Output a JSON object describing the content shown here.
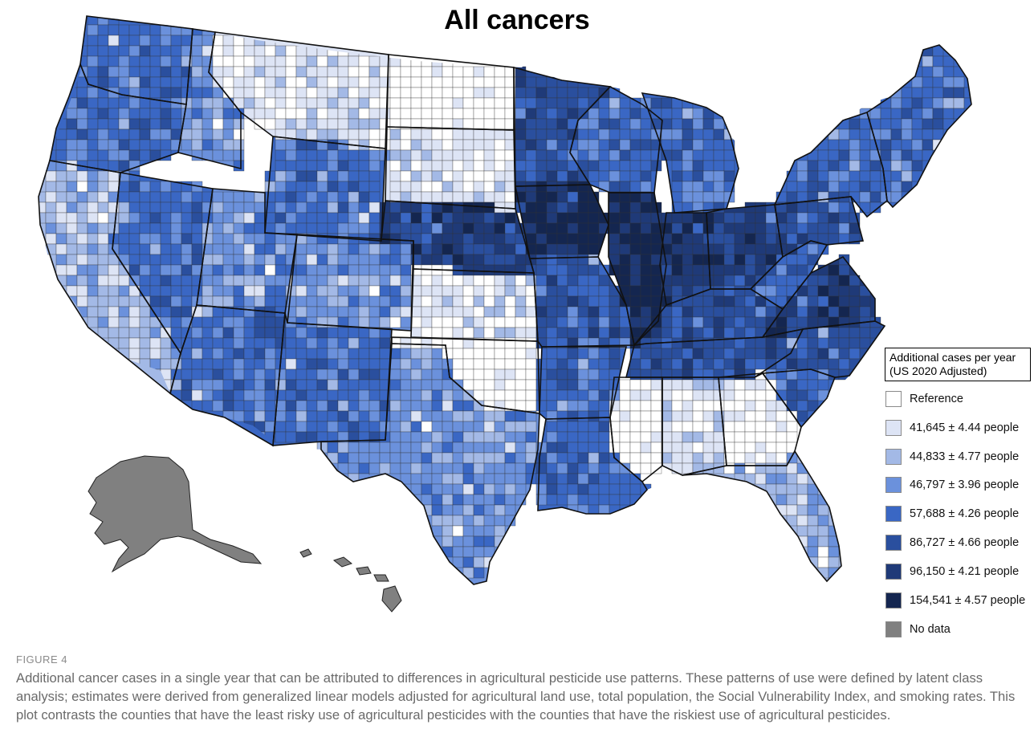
{
  "title": "All cancers",
  "colors": {
    "reference": "#ffffff",
    "c1": "#dde4f5",
    "c2": "#a3b9e6",
    "c3": "#6b91dc",
    "c4": "#3a67c4",
    "c5": "#2a4f9e",
    "c6": "#1f3a78",
    "c7": "#142650",
    "no_data": "#808080",
    "border": "#111111"
  },
  "legend": {
    "title_line1": "Additional cases per year",
    "title_line2": "(US 2020 Adjusted)",
    "items": [
      {
        "label": "Reference",
        "color_key": "reference"
      },
      {
        "label": "41,645 ± 4.44 people",
        "color_key": "c1"
      },
      {
        "label": "44,833 ± 4.77 people",
        "color_key": "c2"
      },
      {
        "label": "46,797 ± 3.96 people",
        "color_key": "c3"
      },
      {
        "label": "57,688 ± 4.26 people",
        "color_key": "c4"
      },
      {
        "label": "86,727 ± 4.66 people",
        "color_key": "c5"
      },
      {
        "label": "96,150 ± 4.21 people",
        "color_key": "c6"
      },
      {
        "label": "154,541 ± 4.57 people",
        "color_key": "c7"
      },
      {
        "label": "No data",
        "color_key": "no_data"
      }
    ]
  },
  "figure": {
    "label": "FIGURE 4",
    "caption": "Additional cancer cases in a single year that can be attributed to differences in agricultural pesticide use patterns. These patterns of use were defined by latent class analysis; estimates were derived from generalized linear models adjusted for agricultural land use, total population, the Social Vulnerability Index, and smoking rates. This plot contrasts the counties that have the least risky use of agricultural pesticides with the counties that have the riskiest use of agricultural pesticides."
  },
  "map": {
    "states": [
      {
        "name": "Washington",
        "class": "c4"
      },
      {
        "name": "Oregon",
        "class": "c4"
      },
      {
        "name": "California",
        "class": "c2"
      },
      {
        "name": "Idaho",
        "class": "c3"
      },
      {
        "name": "Nevada",
        "class": "c4"
      },
      {
        "name": "Montana",
        "class": "c1"
      },
      {
        "name": "Wyoming",
        "class": "c4"
      },
      {
        "name": "Utah",
        "class": "c3"
      },
      {
        "name": "Arizona",
        "class": "c4"
      },
      {
        "name": "Colorado",
        "class": "c3"
      },
      {
        "name": "New Mexico",
        "class": "c4"
      },
      {
        "name": "North Dakota",
        "class": "reference"
      },
      {
        "name": "South Dakota",
        "class": "c1"
      },
      {
        "name": "Nebraska",
        "class": "c6"
      },
      {
        "name": "Kansas",
        "class": "c1"
      },
      {
        "name": "Oklahoma",
        "class": "reference"
      },
      {
        "name": "Texas",
        "class": "c3"
      },
      {
        "name": "Minnesota",
        "class": "c5"
      },
      {
        "name": "Iowa",
        "class": "c7"
      },
      {
        "name": "Missouri",
        "class": "c5"
      },
      {
        "name": "Arkansas",
        "class": "c4"
      },
      {
        "name": "Louisiana",
        "class": "c4"
      },
      {
        "name": "Wisconsin",
        "class": "c4"
      },
      {
        "name": "Illinois",
        "class": "c7"
      },
      {
        "name": "Michigan",
        "class": "c4"
      },
      {
        "name": "Indiana",
        "class": "c6"
      },
      {
        "name": "Ohio",
        "class": "c6"
      },
      {
        "name": "Kentucky",
        "class": "c5"
      },
      {
        "name": "Tennessee",
        "class": "c5"
      },
      {
        "name": "Mississippi",
        "class": "reference"
      },
      {
        "name": "Alabama",
        "class": "c1"
      },
      {
        "name": "Georgia",
        "class": "reference"
      },
      {
        "name": "Florida",
        "class": "c2"
      },
      {
        "name": "South Carolina",
        "class": "c4"
      },
      {
        "name": "North Carolina",
        "class": "c5"
      },
      {
        "name": "Virginia",
        "class": "c6"
      },
      {
        "name": "West Virginia",
        "class": "c4"
      },
      {
        "name": "Pennsylvania",
        "class": "c5"
      },
      {
        "name": "New York",
        "class": "c4"
      },
      {
        "name": "New England",
        "class": "c4"
      },
      {
        "name": "Alaska",
        "class": "no_data"
      },
      {
        "name": "Hawaii",
        "class": "no_data"
      }
    ]
  }
}
